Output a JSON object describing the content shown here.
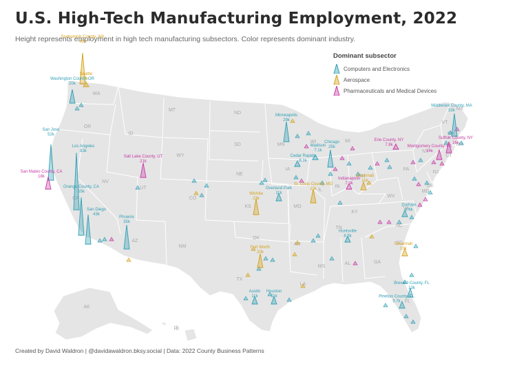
{
  "title": "U.S. High-Tech Manufacturing Employment, 2022",
  "subtitle": "Height represents employment in high tech manufacturing subsectors. Color represents dominant industry.",
  "footer": "Created by David Waldron | @davidawaldron.bksy.social | Data: 2022 County Business Patterns",
  "legend": {
    "title": "Dominant subsector",
    "items": [
      {
        "label": "Computers and Electronics",
        "color": "#2e9fb5"
      },
      {
        "label": "Aerospace",
        "color": "#d4a017"
      },
      {
        "label": "Pharmaceuticals and Medical Devices",
        "color": "#c73aa5"
      }
    ]
  },
  "colors": {
    "computers": "#2e9fb5",
    "aerospace": "#d4a017",
    "pharma": "#c73aa5",
    "land": "#e5e5e5",
    "border": "#ffffff"
  },
  "state_labels": [
    "WA",
    "OR",
    "ID",
    "MT",
    "ND",
    "SD",
    "WY",
    "NE",
    "NV",
    "UT",
    "CO",
    "KS",
    "CA",
    "AZ",
    "NM",
    "OK",
    "TX",
    "MN",
    "WI",
    "IA",
    "MO",
    "IL",
    "MI",
    "IN",
    "OH",
    "KY",
    "TN",
    "MS",
    "AL",
    "GA",
    "FL",
    "SC",
    "NC",
    "VA",
    "WV",
    "PA",
    "NY",
    "ME",
    "VT",
    "NH",
    "MA",
    "CT",
    "NJ",
    "DE",
    "MD",
    "LA",
    "AR",
    "AK",
    "HI"
  ],
  "spikes": [
    {
      "name": "Snohomish County, WA",
      "value": "45k",
      "industry": "aerospace",
      "employment": 45
    },
    {
      "name": "Seattle",
      "value": "7k",
      "industry": "aerospace",
      "employment": 7
    },
    {
      "name": "Washington County, OR",
      "value": "20k",
      "industry": "computers",
      "employment": 20
    },
    {
      "name": "San Jose",
      "value": "52k",
      "industry": "computers",
      "employment": 52
    },
    {
      "name": "San Mateo County, CA",
      "value": "18k",
      "industry": "pharma",
      "employment": 18
    },
    {
      "name": "Los Angeles",
      "value": "83k",
      "industry": "computers",
      "employment": 83
    },
    {
      "name": "Orange County, CA",
      "value": "55k",
      "industry": "computers",
      "employment": 55
    },
    {
      "name": "San Diego",
      "value": "43k",
      "industry": "computers",
      "employment": 43
    },
    {
      "name": "Phoenix",
      "value": "35k",
      "industry": "computers",
      "employment": 35
    },
    {
      "name": "Salt Lake County, UT",
      "value": "21k",
      "industry": "pharma",
      "employment": 21
    },
    {
      "name": "Minneapolis",
      "value": "29k",
      "industry": "computers",
      "employment": 29
    },
    {
      "name": "Madison",
      "value": "7.1k",
      "industry": "computers",
      "employment": 7.1
    },
    {
      "name": "Cedar Rapids",
      "value": "8.1k",
      "industry": "computers",
      "employment": 8.1
    },
    {
      "name": "Chicago",
      "value": "25k",
      "industry": "computers",
      "employment": 25
    },
    {
      "name": "Overland Park",
      "value": "11k",
      "industry": "computers",
      "employment": 11
    },
    {
      "name": "St. Louis County, MO",
      "value": "20k",
      "industry": "aerospace",
      "employment": 20
    },
    {
      "name": "Wichita",
      "value": "23k",
      "industry": "aerospace",
      "employment": 23
    },
    {
      "name": "Indianapolis",
      "value": "7.9k",
      "industry": "pharma",
      "employment": 7.9
    },
    {
      "name": "Cincinnati",
      "value": "11k",
      "industry": "aerospace",
      "employment": 11
    },
    {
      "name": "Fort Worth",
      "value": "20k",
      "industry": "aerospace",
      "employment": 20
    },
    {
      "name": "Austin",
      "value": "11k",
      "industry": "computers",
      "employment": 11
    },
    {
      "name": "Houston",
      "value": "11k",
      "industry": "computers",
      "employment": 11
    },
    {
      "name": "Huntsville",
      "value": "8.5k",
      "industry": "computers",
      "employment": 8.5
    },
    {
      "name": "Durham",
      "value": "9.6k",
      "industry": "computers",
      "employment": 9.6
    },
    {
      "name": "Savannah",
      "value": "10k",
      "industry": "aerospace",
      "employment": 10
    },
    {
      "name": "Brevard County, FL",
      "value": "13k",
      "industry": "computers",
      "employment": 13
    },
    {
      "name": "Pinellas County, FL",
      "value": "9.7k",
      "industry": "computers",
      "employment": 9.7
    },
    {
      "name": "Erie County, NY",
      "value": "7.8k",
      "industry": "pharma",
      "employment": 7.8
    },
    {
      "name": "Middlesex County, MA",
      "value": "33k",
      "industry": "computers",
      "employment": 33
    },
    {
      "name": "Suffolk County, NY",
      "value": "16k",
      "industry": "pharma",
      "employment": 16
    },
    {
      "name": "Montgomery County, PA",
      "value": "14k",
      "industry": "pharma",
      "employment": 14
    }
  ]
}
